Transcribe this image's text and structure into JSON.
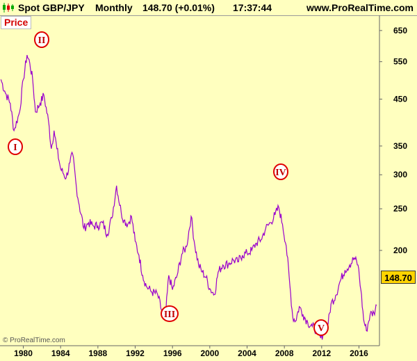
{
  "header": {
    "symbol": "Spot GBP/JPY",
    "timeframe": "Monthly",
    "price_change": "148.70 (+0.01%)",
    "time": "17:37:44",
    "site": "www.ProRealTime.com"
  },
  "panel_label": "Price",
  "copyright": "© ProRealTime.com",
  "chart_data": {
    "type": "line",
    "scale": "log",
    "ylim": [
      120,
      700
    ],
    "xlim": [
      1977.5,
      2018.2
    ],
    "y_ticks": [
      650,
      550,
      450,
      350,
      300,
      250,
      200
    ],
    "x_ticks": [
      "1980",
      "1984",
      "1988",
      "1992",
      "1996",
      "2000",
      "2004",
      "2008",
      "2012",
      "2016"
    ],
    "last_price": "148.70",
    "line_color": "#9900cc",
    "series": [
      {
        "x": [
          1977.6,
          1978.0,
          1978.6,
          1979.0,
          1979.6,
          1980.0,
          1980.4,
          1980.7,
          1981.0,
          1981.3,
          1981.8,
          1982.2,
          1982.7,
          1983.0,
          1983.3,
          1983.6,
          1984.0,
          1984.6,
          1985.0,
          1985.3,
          1985.7,
          1986.0,
          1986.5,
          1987.0,
          1987.5,
          1988.0,
          1988.5,
          1989.0,
          1989.5,
          1990.0,
          1990.5,
          1990.8,
          1991.2,
          1991.6,
          1992.0,
          1992.4,
          1992.8,
          1993.2,
          1993.8,
          1994.4,
          1995.0,
          1995.3,
          1995.6,
          1996.0,
          1996.5,
          1997.0,
          1997.5,
          1998.0,
          1998.4,
          1998.8,
          1999.2,
          1999.6,
          2000.0,
          2000.5,
          2000.9,
          2001.4,
          2002.0,
          2002.5,
          2003.0,
          2003.5,
          2004.0,
          2004.5,
          2005.0,
          2005.5,
          2006.0,
          2006.5,
          2007.0,
          2007.4,
          2007.8,
          2008.2,
          2008.6,
          2008.9,
          2009.2,
          2009.6,
          2010.0,
          2010.5,
          2011.0,
          2011.5,
          2011.9,
          2012.3,
          2012.7,
          2013.0,
          2013.5,
          2014.0,
          2014.5,
          2015.0,
          2015.5,
          2015.9,
          2016.2,
          2016.5,
          2016.8,
          2017.2,
          2017.6,
          2017.9
        ],
        "y": [
          500,
          470,
          440,
          380,
          420,
          500,
          570,
          545,
          500,
          420,
          440,
          460,
          400,
          345,
          380,
          345,
          310,
          295,
          320,
          335,
          280,
          255,
          225,
          232,
          228,
          228,
          232,
          218,
          238,
          283,
          245,
          235,
          230,
          240,
          210,
          195,
          175,
          165,
          160,
          158,
          140,
          145,
          175,
          162,
          175,
          196,
          204,
          240,
          205,
          185,
          178,
          173,
          163,
          158,
          178,
          185,
          186,
          190,
          188,
          195,
          197,
          200,
          208,
          212,
          225,
          232,
          242,
          252,
          230,
          205,
          165,
          140,
          137,
          148,
          142,
          136,
          133,
          130,
          125,
          130,
          135,
          150,
          157,
          170,
          180,
          185,
          192,
          185,
          162,
          138,
          130,
          142,
          143,
          149
        ]
      }
    ],
    "annotations": [
      "I",
      "II",
      "III",
      "IV",
      "V"
    ]
  }
}
